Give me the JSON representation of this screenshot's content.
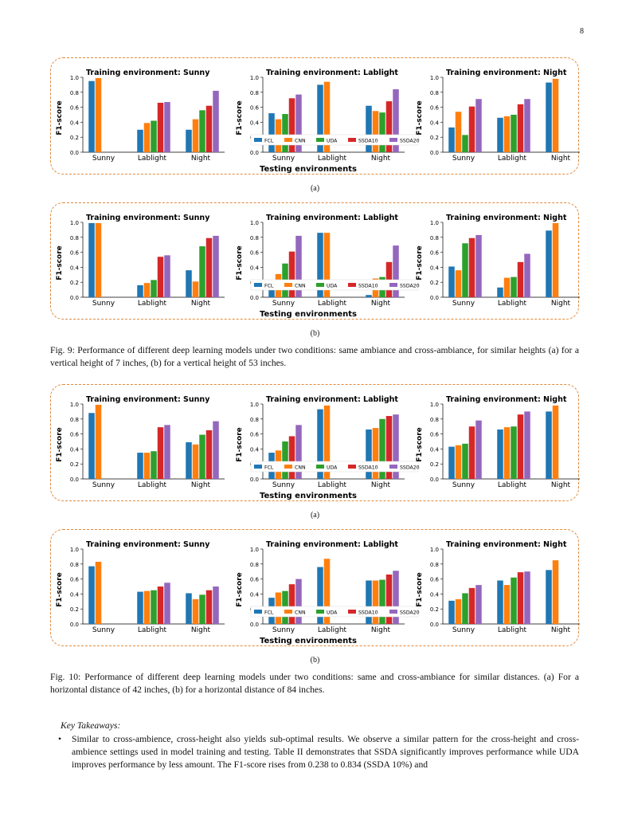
{
  "page": {
    "number": "8"
  },
  "colors": {
    "FCL": "#1f77b4",
    "CNN": "#ff7f0e",
    "UDA": "#2ca02c",
    "SSDA10": "#d62728",
    "SSDA20": "#9467bd",
    "border": "#e08a3c"
  },
  "common": {
    "ylabel": "F1-score",
    "xlabel": "Testing environments",
    "categories": [
      "Sunny",
      "Lablight",
      "Night"
    ],
    "legend": [
      "FCL",
      "CNN",
      "UDA",
      "SSDA10",
      "SSDA20"
    ],
    "yticks": [
      "0.0",
      "0.2",
      "0.4",
      "0.6",
      "0.8",
      "1.0"
    ]
  },
  "captions": {
    "fig9": "Fig. 9: Performance of different deep learning models under two conditions: same ambiance and cross-ambiance, for similar heights (a) for a vertical height of 7 inches, (b) for a vertical height of 53 inches.",
    "fig10": "Fig. 10: Performance of different deep learning models under two conditions: same and cross-ambiance for similar distances. (a) For a horizontal distance of 42 inches, (b) for a horizontal distance of 84 inches."
  },
  "key_takeaways": {
    "heading": "Key Takeaways:",
    "bullet": "•",
    "items": [
      "Similar to cross-ambience, cross-height also yields sub-optimal results. We observe a similar pattern for the cross-height and cross-ambience settings used in model training and testing. Table II demonstrates that SSDA significantly improves performance while UDA improves performance by less amount. The F1-score rises from 0.238 to 0.834 (SSDA 10%) and"
    ]
  },
  "chart_data": [
    {
      "figure": "Fig. 9",
      "sublabel": "(a)",
      "type": "bar",
      "panels": [
        {
          "title": "Training environment: Sunny",
          "values": [
            [
              0.95,
              0.99,
              null,
              null,
              null
            ],
            [
              0.3,
              0.39,
              0.42,
              0.66,
              0.67
            ],
            [
              0.3,
              0.44,
              0.56,
              0.62,
              0.82
            ]
          ]
        },
        {
          "title": "Training environment: Lablight",
          "values": [
            [
              0.52,
              0.44,
              0.51,
              0.72,
              0.77
            ],
            [
              0.9,
              0.94,
              null,
              null,
              null
            ],
            [
              0.62,
              0.55,
              0.53,
              0.68,
              0.84
            ]
          ]
        },
        {
          "title": "Training environment: Night",
          "values": [
            [
              0.33,
              0.54,
              0.23,
              0.61,
              0.71
            ],
            [
              0.46,
              0.48,
              0.5,
              0.64,
              0.71
            ],
            [
              0.93,
              0.98,
              null,
              null,
              null
            ]
          ]
        }
      ]
    },
    {
      "figure": "Fig. 9",
      "sublabel": "(b)",
      "type": "bar",
      "panels": [
        {
          "title": "Training environment: Sunny",
          "values": [
            [
              0.99,
              0.99,
              null,
              null,
              null
            ],
            [
              0.16,
              0.19,
              0.23,
              0.54,
              0.56
            ],
            [
              0.36,
              0.21,
              0.68,
              0.79,
              0.82
            ]
          ]
        },
        {
          "title": "Training environment: Lablight",
          "values": [
            [
              0.16,
              0.31,
              0.45,
              0.61,
              0.82
            ],
            [
              0.86,
              0.86,
              null,
              null,
              null
            ],
            [
              0.03,
              0.25,
              0.27,
              0.47,
              0.69
            ]
          ]
        },
        {
          "title": "Training environment: Night",
          "values": [
            [
              0.41,
              0.36,
              0.72,
              0.79,
              0.83
            ],
            [
              0.13,
              0.26,
              0.27,
              0.47,
              0.58
            ],
            [
              0.89,
              0.99,
              null,
              null,
              null
            ]
          ]
        }
      ]
    },
    {
      "figure": "Fig. 10",
      "sublabel": "(a)",
      "type": "bar",
      "panels": [
        {
          "title": "Training environment: Sunny",
          "values": [
            [
              0.88,
              0.99,
              null,
              null,
              null
            ],
            [
              0.35,
              0.35,
              0.37,
              0.69,
              0.72
            ],
            [
              0.49,
              0.46,
              0.59,
              0.65,
              0.77
            ]
          ]
        },
        {
          "title": "Training environment: Lablight",
          "values": [
            [
              0.35,
              0.38,
              0.5,
              0.57,
              0.72
            ],
            [
              0.93,
              0.98,
              null,
              null,
              null
            ],
            [
              0.66,
              0.68,
              0.8,
              0.84,
              0.86
            ]
          ]
        },
        {
          "title": "Training environment: Night",
          "values": [
            [
              0.43,
              0.45,
              0.47,
              0.7,
              0.78
            ],
            [
              0.66,
              0.69,
              0.7,
              0.86,
              0.9
            ],
            [
              0.9,
              0.98,
              null,
              null,
              null
            ]
          ]
        }
      ]
    },
    {
      "figure": "Fig. 10",
      "sublabel": "(b)",
      "type": "bar",
      "panels": [
        {
          "title": "Training environment: Sunny",
          "values": [
            [
              0.77,
              0.83,
              null,
              null,
              null
            ],
            [
              0.43,
              0.44,
              0.45,
              0.5,
              0.55
            ],
            [
              0.41,
              0.33,
              0.39,
              0.45,
              0.5
            ]
          ]
        },
        {
          "title": "Training environment: Lablight",
          "values": [
            [
              0.35,
              0.42,
              0.44,
              0.53,
              0.6
            ],
            [
              0.76,
              0.87,
              null,
              null,
              null
            ],
            [
              0.58,
              0.58,
              0.59,
              0.66,
              0.71
            ]
          ]
        },
        {
          "title": "Training environment: Night",
          "values": [
            [
              0.31,
              0.33,
              0.41,
              0.48,
              0.52
            ],
            [
              0.58,
              0.52,
              0.62,
              0.69,
              0.7
            ],
            [
              0.72,
              0.85,
              null,
              null,
              null
            ]
          ]
        }
      ]
    }
  ]
}
